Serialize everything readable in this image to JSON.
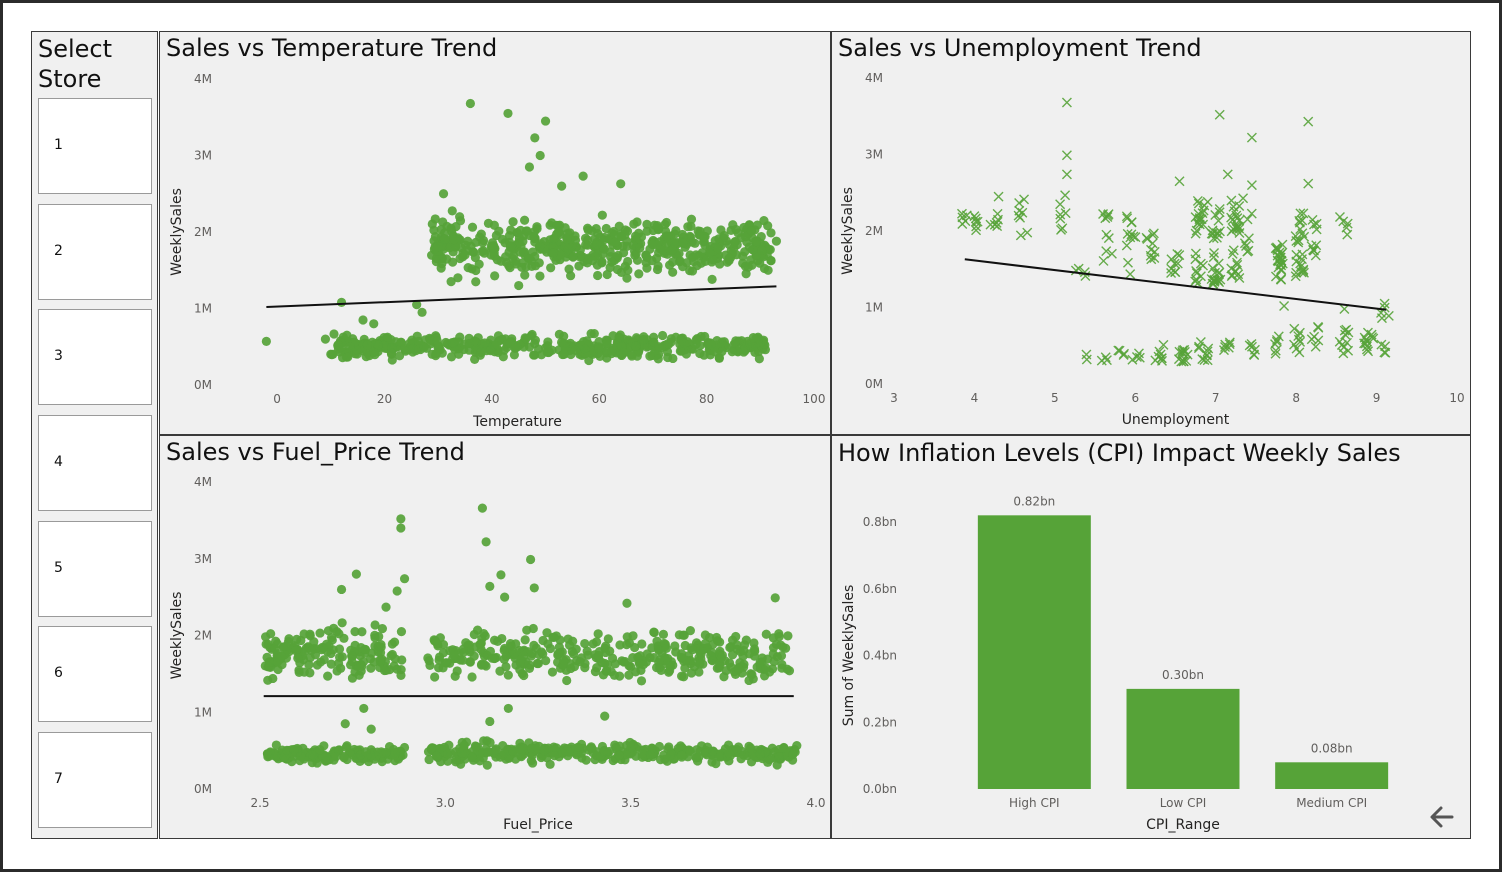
{
  "slicer": {
    "title": "Select Store",
    "items": [
      "1",
      "2",
      "3",
      "4",
      "5",
      "6",
      "7"
    ]
  },
  "colors": {
    "accent": "#56A338",
    "trend": "#111111"
  },
  "icons": {
    "back": "back-arrow-icon"
  },
  "chart_data": [
    {
      "id": "temp",
      "type": "scatter",
      "title": "Sales vs Temperature Trend",
      "xlabel": "Temperature",
      "ylabel": "WeeklySales",
      "xlim": [
        -3,
        100
      ],
      "ylim": [
        0,
        4000000
      ],
      "xticks": [
        "0",
        "20",
        "40",
        "60",
        "80",
        "100"
      ],
      "xtick_values": [
        0,
        20,
        40,
        60,
        80,
        100
      ],
      "yticks": [
        "0M",
        "1M",
        "2M",
        "3M",
        "4M"
      ],
      "ytick_values": [
        0,
        1000000,
        2000000,
        3000000,
        4000000
      ],
      "marker": "circle",
      "trendline": [
        [
          -2,
          1020000
        ],
        [
          93,
          1290000
        ]
      ],
      "clusters": [
        {
          "x": [
            28,
            92
          ],
          "y": [
            1300000,
            2300000
          ],
          "n": 520
        },
        {
          "x": [
            10,
            91
          ],
          "y": [
            300000,
            700000
          ],
          "n": 480
        }
      ],
      "points": [
        [
          36,
          3680000
        ],
        [
          43,
          3550000
        ],
        [
          48,
          3230000
        ],
        [
          50,
          3450000
        ],
        [
          49,
          3000000
        ],
        [
          47,
          2850000
        ],
        [
          53,
          2600000
        ],
        [
          57,
          2730000
        ],
        [
          64,
          2630000
        ],
        [
          -2,
          570000
        ],
        [
          12,
          1080000
        ],
        [
          26,
          1050000
        ],
        [
          27,
          950000
        ],
        [
          34,
          2200000
        ],
        [
          31,
          2500000
        ],
        [
          37,
          1350000
        ],
        [
          33,
          1900000
        ],
        [
          35,
          1700000
        ],
        [
          93,
          1880000
        ],
        [
          9,
          600000
        ],
        [
          13,
          650000
        ],
        [
          16,
          850000
        ],
        [
          18,
          800000
        ],
        [
          30,
          480000
        ],
        [
          45,
          1300000
        ]
      ]
    },
    {
      "id": "unemp",
      "type": "scatter",
      "title": "Sales vs Unemployment Trend",
      "xlabel": "Unemployment",
      "ylabel": "WeeklySales",
      "xlim": [
        3,
        10
      ],
      "ylim": [
        0,
        4000000
      ],
      "xticks": [
        "3",
        "4",
        "5",
        "6",
        "7",
        "8",
        "9",
        "10"
      ],
      "xtick_values": [
        3,
        4,
        5,
        6,
        7,
        8,
        9,
        10
      ],
      "yticks": [
        "0M",
        "1M",
        "2M",
        "3M",
        "4M"
      ],
      "ytick_values": [
        0,
        1000000,
        2000000,
        3000000,
        4000000
      ],
      "marker": "x",
      "trendline": [
        [
          3.88,
          1630000
        ],
        [
          9.12,
          970000
        ]
      ],
      "columns": [
        {
          "x": 3.88,
          "y": [
            2000000,
            2250000
          ],
          "n": 5
        },
        {
          "x": 4.05,
          "y": [
            2000000,
            2250000
          ],
          "n": 6
        },
        {
          "x": 4.25,
          "y": [
            2000000,
            2250000
          ],
          "n": 6
        },
        {
          "x": 4.6,
          "y": [
            1900000,
            2450000
          ],
          "n": 8
        },
        {
          "x": 5.12,
          "y": [
            2000000,
            2500000
          ],
          "n": 7
        },
        {
          "x": 5.32,
          "y": [
            1400000,
            1550000
          ],
          "n": 4
        },
        {
          "x": 5.65,
          "y": [
            1500000,
            2250000
          ],
          "n": 10
        },
        {
          "x": 5.95,
          "y": [
            1400000,
            2250000
          ],
          "n": 12
        },
        {
          "x": 6.2,
          "y": [
            1400000,
            2000000
          ],
          "n": 10
        },
        {
          "x": 6.5,
          "y": [
            1300000,
            1800000
          ],
          "n": 9
        },
        {
          "x": 6.8,
          "y": [
            1300000,
            2400000
          ],
          "n": 26
        },
        {
          "x": 7.0,
          "y": [
            1300000,
            2300000
          ],
          "n": 30
        },
        {
          "x": 7.25,
          "y": [
            1300000,
            2400000
          ],
          "n": 28
        },
        {
          "x": 7.4,
          "y": [
            1700000,
            2500000
          ],
          "n": 8
        },
        {
          "x": 7.8,
          "y": [
            1350000,
            1850000
          ],
          "n": 24
        },
        {
          "x": 8.05,
          "y": [
            1400000,
            2300000
          ],
          "n": 24
        },
        {
          "x": 8.25,
          "y": [
            1600000,
            2150000
          ],
          "n": 10
        },
        {
          "x": 8.6,
          "y": [
            1850000,
            2200000
          ],
          "n": 5
        },
        {
          "x": 5.4,
          "y": [
            300000,
            400000
          ],
          "n": 2
        },
        {
          "x": 5.6,
          "y": [
            300000,
            400000
          ],
          "n": 3
        },
        {
          "x": 5.8,
          "y": [
            300000,
            450000
          ],
          "n": 4
        },
        {
          "x": 6.0,
          "y": [
            300000,
            450000
          ],
          "n": 4
        },
        {
          "x": 6.3,
          "y": [
            300000,
            550000
          ],
          "n": 8
        },
        {
          "x": 6.6,
          "y": [
            280000,
            480000
          ],
          "n": 12
        },
        {
          "x": 6.85,
          "y": [
            300000,
            550000
          ],
          "n": 10
        },
        {
          "x": 7.15,
          "y": [
            350000,
            550000
          ],
          "n": 6
        },
        {
          "x": 7.45,
          "y": [
            350000,
            550000
          ],
          "n": 6
        },
        {
          "x": 7.75,
          "y": [
            350000,
            650000
          ],
          "n": 6
        },
        {
          "x": 8.0,
          "y": [
            400000,
            750000
          ],
          "n": 8
        },
        {
          "x": 8.25,
          "y": [
            450000,
            750000
          ],
          "n": 6
        },
        {
          "x": 8.6,
          "y": [
            400000,
            750000
          ],
          "n": 10
        },
        {
          "x": 8.9,
          "y": [
            350000,
            700000
          ],
          "n": 12
        },
        {
          "x": 9.1,
          "y": [
            400000,
            1000000
          ],
          "n": 8
        }
      ],
      "points": [
        [
          5.15,
          3680000
        ],
        [
          5.15,
          2990000
        ],
        [
          5.15,
          2740000
        ],
        [
          7.05,
          3520000
        ],
        [
          8.15,
          3430000
        ],
        [
          7.45,
          3220000
        ],
        [
          7.15,
          2740000
        ],
        [
          6.55,
          2650000
        ],
        [
          7.45,
          2600000
        ],
        [
          8.15,
          2620000
        ],
        [
          6.9,
          2380000
        ],
        [
          8.6,
          980000
        ],
        [
          7.85,
          1020000
        ],
        [
          9.1,
          1050000
        ],
        [
          4.3,
          2450000
        ]
      ]
    },
    {
      "id": "fuel",
      "type": "scatter",
      "title": "Sales vs Fuel_Price Trend",
      "xlabel": "Fuel_Price",
      "ylabel": "WeeklySales",
      "xlim": [
        2.5,
        4.0
      ],
      "ylim": [
        0,
        4000000
      ],
      "xticks": [
        "2.5",
        "3.0",
        "3.5",
        "4.0"
      ],
      "xtick_values": [
        2.5,
        3.0,
        3.5,
        4.0
      ],
      "yticks": [
        "0M",
        "1M",
        "2M",
        "3M",
        "4M"
      ],
      "ytick_values": [
        0,
        1000000,
        2000000,
        3000000,
        4000000
      ],
      "marker": "circle",
      "trendline": [
        [
          2.51,
          1210000
        ],
        [
          3.94,
          1210000
        ]
      ],
      "clusters": [
        {
          "x": [
            2.51,
            2.89
          ],
          "y": [
            1300000,
            2200000
          ],
          "n": 160
        },
        {
          "x": [
            2.95,
            3.93
          ],
          "y": [
            1300000,
            2200000
          ],
          "n": 360
        },
        {
          "x": [
            2.51,
            2.89
          ],
          "y": [
            300000,
            600000
          ],
          "n": 150
        },
        {
          "x": [
            2.95,
            3.95
          ],
          "y": [
            300000,
            650000
          ],
          "n": 360
        }
      ],
      "points": [
        [
          2.88,
          3520000
        ],
        [
          2.88,
          3400000
        ],
        [
          3.1,
          3660000
        ],
        [
          3.11,
          3220000
        ],
        [
          3.23,
          2990000
        ],
        [
          2.76,
          2800000
        ],
        [
          3.15,
          2790000
        ],
        [
          3.12,
          2640000
        ],
        [
          3.24,
          2620000
        ],
        [
          2.89,
          2740000
        ],
        [
          2.87,
          2580000
        ],
        [
          2.84,
          2370000
        ],
        [
          3.16,
          2500000
        ],
        [
          2.72,
          2600000
        ],
        [
          3.89,
          2490000
        ],
        [
          3.49,
          2420000
        ],
        [
          2.78,
          1050000
        ],
        [
          3.17,
          1050000
        ],
        [
          2.73,
          850000
        ],
        [
          3.12,
          880000
        ],
        [
          3.43,
          950000
        ],
        [
          2.8,
          780000
        ]
      ]
    },
    {
      "id": "cpi",
      "type": "bar",
      "title": "How Inflation Levels (CPI) Impact Weekly Sales",
      "xlabel": "CPI_Range",
      "ylabel": "Sum of WeeklySales",
      "categories": [
        "High CPI",
        "Low CPI",
        "Medium CPI"
      ],
      "values": [
        0.82,
        0.3,
        0.08
      ],
      "data_labels": [
        "0.82bn",
        "0.30bn",
        "0.08bn"
      ],
      "ylim": [
        0,
        0.8
      ],
      "yticks": [
        "0.0bn",
        "0.2bn",
        "0.4bn",
        "0.6bn",
        "0.8bn"
      ],
      "ytick_values": [
        0,
        0.2,
        0.4,
        0.6,
        0.8
      ]
    }
  ]
}
